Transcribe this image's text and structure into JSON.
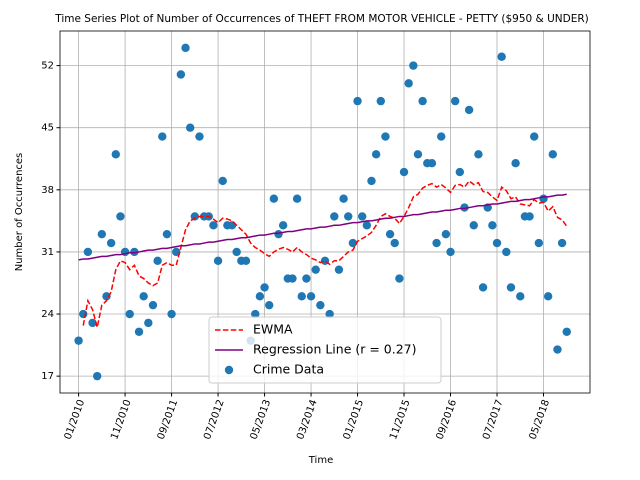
{
  "chart_data": {
    "type": "line",
    "title": "Time Series Plot of Number of Occurrences of THEFT FROM MOTOR VEHICLE - PETTY ($950 & UNDER)",
    "x_label": "Time",
    "y_label": "Number of Occurrences",
    "x": [
      "01/2010",
      "02/2010",
      "03/2010",
      "04/2010",
      "05/2010",
      "06/2010",
      "07/2010",
      "08/2010",
      "09/2010",
      "10/2010",
      "11/2010",
      "12/2010",
      "01/2011",
      "02/2011",
      "03/2011",
      "04/2011",
      "05/2011",
      "06/2011",
      "07/2011",
      "08/2011",
      "09/2011",
      "10/2011",
      "11/2011",
      "12/2011",
      "01/2012",
      "02/2012",
      "03/2012",
      "04/2012",
      "05/2012",
      "06/2012",
      "07/2012",
      "08/2012",
      "09/2012",
      "10/2012",
      "11/2012",
      "12/2012",
      "01/2013",
      "02/2013",
      "03/2013",
      "04/2013",
      "05/2013",
      "06/2013",
      "07/2013",
      "08/2013",
      "09/2013",
      "10/2013",
      "11/2013",
      "12/2013",
      "01/2014",
      "02/2014",
      "03/2014",
      "04/2014",
      "05/2014",
      "06/2014",
      "07/2014",
      "08/2014",
      "09/2014",
      "10/2014",
      "11/2014",
      "12/2014",
      "01/2015",
      "02/2015",
      "03/2015",
      "04/2015",
      "05/2015",
      "06/2015",
      "07/2015",
      "08/2015",
      "09/2015",
      "10/2015",
      "11/2015",
      "12/2015",
      "01/2016",
      "02/2016",
      "03/2016",
      "04/2016",
      "05/2016",
      "06/2016",
      "07/2016",
      "08/2016",
      "09/2016",
      "10/2016",
      "11/2016",
      "12/2016",
      "01/2017",
      "02/2017",
      "03/2017",
      "04/2017",
      "05/2017",
      "06/2017",
      "07/2017",
      "08/2017",
      "09/2017",
      "10/2017",
      "11/2017",
      "12/2017",
      "01/2018",
      "02/2018",
      "03/2018",
      "04/2018",
      "05/2018",
      "06/2018",
      "07/2018",
      "08/2018",
      "09/2018",
      "10/2018"
    ],
    "series": [
      {
        "name": "EWMA",
        "type": "line",
        "color": "red",
        "dash": true,
        "values": [
          null,
          22.7,
          25.5,
          24.5,
          22.5,
          25,
          25.5,
          26.5,
          29,
          30,
          29.8,
          29,
          29.5,
          28.3,
          28,
          27.5,
          27.2,
          27.5,
          29.5,
          29.8,
          29.5,
          29.5,
          31.5,
          33.5,
          34.5,
          34.8,
          35,
          35,
          35,
          34.7,
          34.3,
          34.8,
          34.7,
          34.5,
          34,
          33.5,
          33,
          32,
          31.5,
          31.2,
          30.8,
          30.5,
          31,
          31.3,
          31.5,
          31.3,
          31,
          31.5,
          31,
          30.7,
          30.3,
          30.1,
          29.8,
          30,
          29.6,
          30,
          30,
          30.5,
          31,
          31.2,
          32.2,
          32.5,
          32.8,
          33.2,
          34,
          35,
          35.3,
          35,
          34.8,
          34.2,
          35,
          36,
          37.2,
          37.5,
          38.2,
          38.5,
          38.7,
          38.3,
          38.6,
          38.2,
          37.7,
          38.5,
          38.6,
          38.3,
          39,
          38.6,
          38.8,
          37.8,
          37.7,
          37.2,
          36.8,
          38.3,
          37.9,
          37,
          37.2,
          36.4,
          36.3,
          36.2,
          36.9,
          36.5,
          36.6,
          35.6,
          36.1,
          34.9,
          34.6,
          33.9
        ]
      },
      {
        "name": "Regression Line (r = 0.27)",
        "type": "line",
        "color": "purple",
        "dash": false,
        "values": [
          30.1,
          30.2,
          30.2,
          30.3,
          30.4,
          30.5,
          30.5,
          30.6,
          30.7,
          30.7,
          30.8,
          30.9,
          30.9,
          31.0,
          31.1,
          31.2,
          31.2,
          31.3,
          31.4,
          31.4,
          31.5,
          31.6,
          31.7,
          31.7,
          31.8,
          31.9,
          31.9,
          32.0,
          32.1,
          32.1,
          32.2,
          32.3,
          32.4,
          32.4,
          32.5,
          32.6,
          32.6,
          32.7,
          32.8,
          32.9,
          32.9,
          33.0,
          33.1,
          33.1,
          33.2,
          33.3,
          33.3,
          33.4,
          33.5,
          33.6,
          33.6,
          33.7,
          33.8,
          33.8,
          33.9,
          34.0,
          34.0,
          34.1,
          34.2,
          34.3,
          34.3,
          34.4,
          34.5,
          34.5,
          34.6,
          34.7,
          34.8,
          34.8,
          34.9,
          35.0,
          35.0,
          35.1,
          35.2,
          35.2,
          35.3,
          35.4,
          35.5,
          35.5,
          35.6,
          35.7,
          35.7,
          35.8,
          35.9,
          35.9,
          36.0,
          36.1,
          36.2,
          36.2,
          36.3,
          36.4,
          36.4,
          36.5,
          36.6,
          36.7,
          36.7,
          36.8,
          36.9,
          36.9,
          37.0,
          37.1,
          37.2,
          37.2,
          37.3,
          37.4,
          37.4,
          37.5
        ]
      },
      {
        "name": "Crime Data",
        "type": "scatter",
        "color": "#1f77b4",
        "values": [
          21,
          24,
          31,
          23,
          17,
          33,
          26,
          32,
          42,
          35,
          31,
          24,
          31,
          22,
          26,
          23,
          25,
          30,
          44,
          33,
          24,
          31,
          51,
          54,
          45,
          35,
          44,
          35,
          35,
          34,
          30,
          39,
          34,
          34,
          31,
          30,
          30,
          21,
          24,
          26,
          27,
          25,
          37,
          33,
          34,
          28,
          28,
          37,
          26,
          28,
          26,
          29,
          25,
          30,
          24,
          35,
          29,
          37,
          35,
          32,
          48,
          35,
          34,
          39,
          42,
          48,
          44,
          33,
          32,
          28,
          40,
          50,
          52,
          42,
          48,
          41,
          41,
          32,
          44,
          33,
          31,
          48,
          40,
          36,
          47,
          34,
          42,
          27,
          36,
          34,
          32,
          53,
          31,
          27,
          41,
          26,
          35,
          35,
          44,
          32,
          37,
          26,
          42,
          20,
          32,
          22
        ]
      }
    ],
    "xlim": [
      "09/2009",
      "03/2019"
    ],
    "xticks": [
      "01/2010",
      "11/2010",
      "09/2011",
      "07/2012",
      "05/2013",
      "03/2014",
      "01/2015",
      "11/2015",
      "09/2016",
      "07/2017",
      "05/2018"
    ],
    "ylim": [
      15.1,
      55.9
    ],
    "yticks": [
      17,
      24,
      31,
      38,
      45,
      52
    ],
    "grid": true,
    "legend": "lower center"
  }
}
